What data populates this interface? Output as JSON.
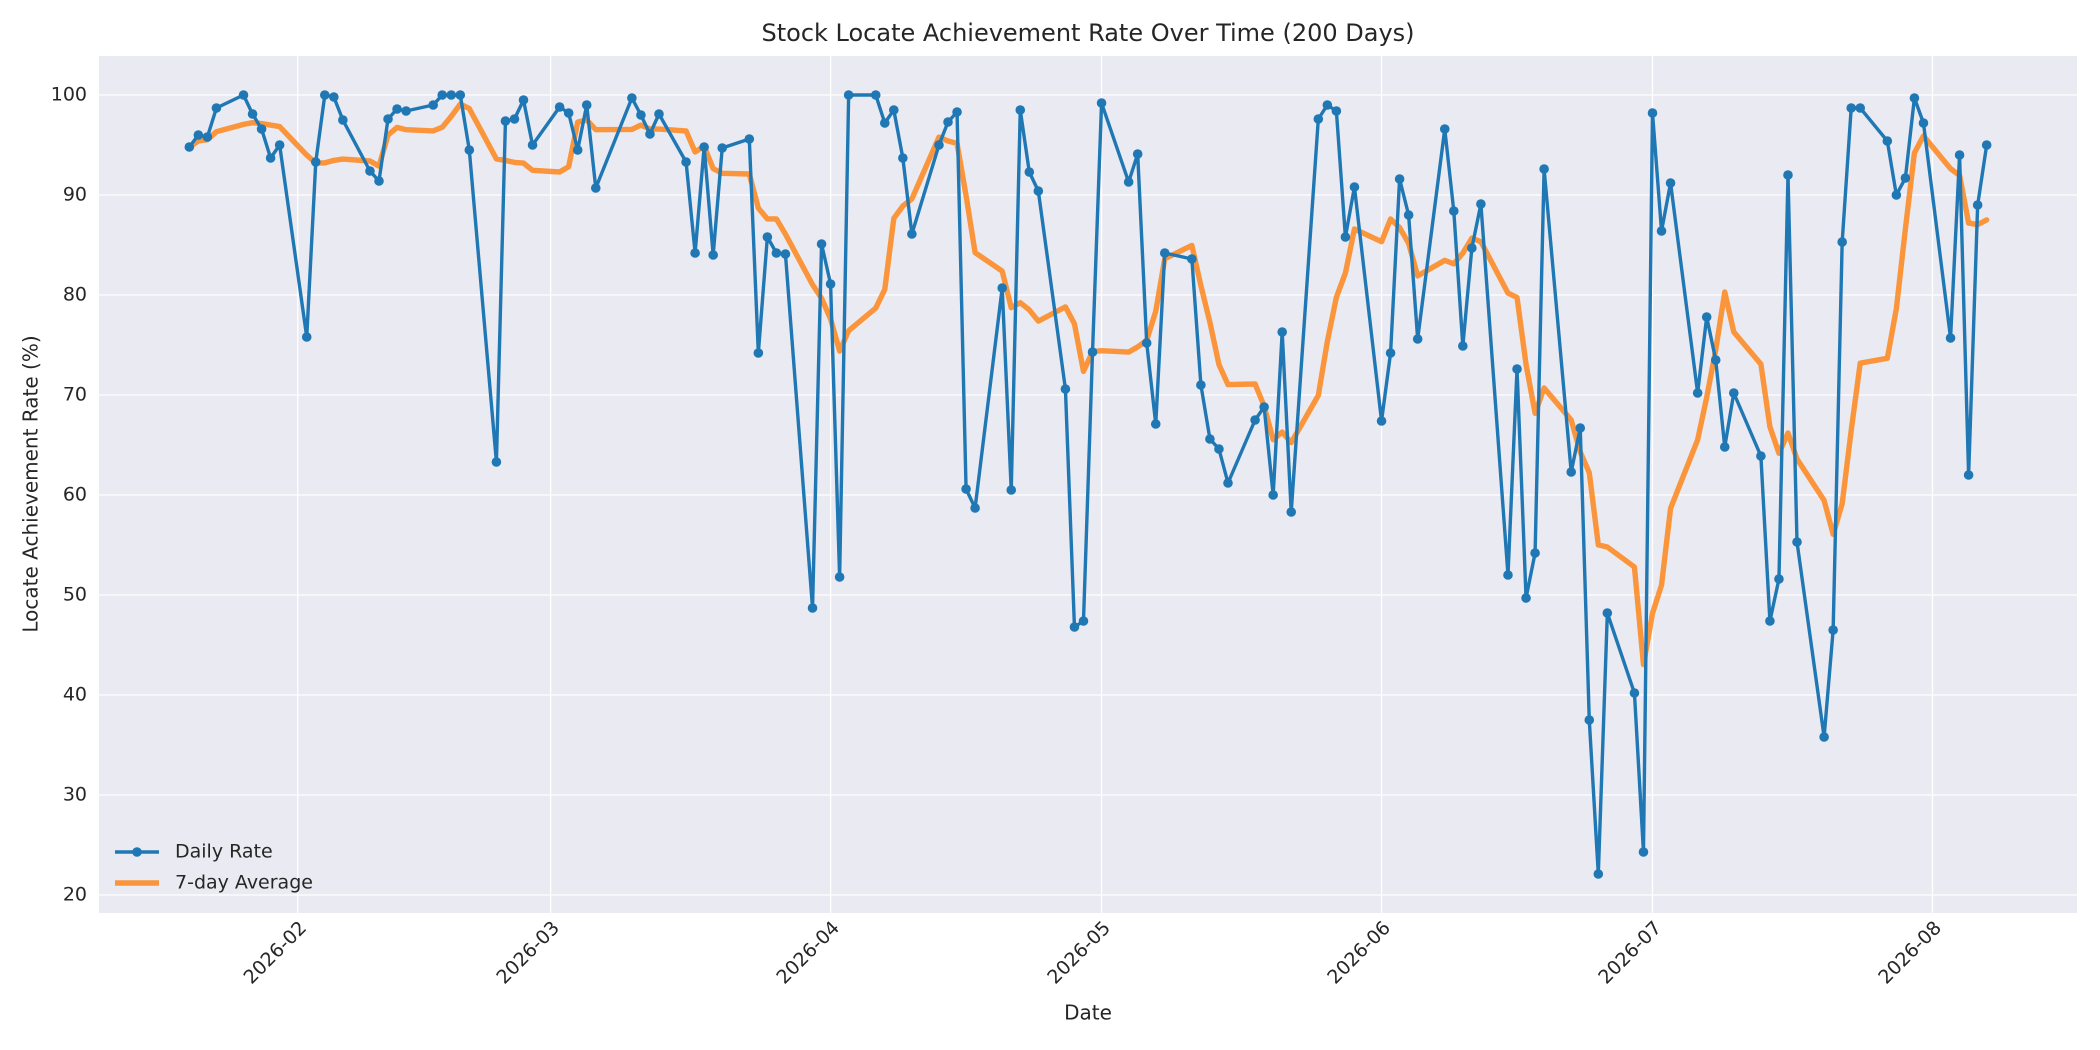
{
  "chart_data": {
    "type": "line",
    "title": "Stock Locate Achievement Rate Over Time (200 Days)",
    "xlabel": "Date",
    "ylabel": "Locate Achievement Rate (%)",
    "x": [
      "2026-01-20",
      "2026-01-21",
      "2026-01-22",
      "2026-01-23",
      "2026-01-26",
      "2026-01-27",
      "2026-01-28",
      "2026-01-29",
      "2026-01-30",
      "2026-02-02",
      "2026-02-03",
      "2026-02-04",
      "2026-02-05",
      "2026-02-06",
      "2026-02-09",
      "2026-02-10",
      "2026-02-11",
      "2026-02-12",
      "2026-02-13",
      "2026-02-16",
      "2026-02-17",
      "2026-02-18",
      "2026-02-19",
      "2026-02-20",
      "2026-02-23",
      "2026-02-24",
      "2026-02-25",
      "2026-02-26",
      "2026-02-27",
      "2026-03-02",
      "2026-03-03",
      "2026-03-04",
      "2026-03-05",
      "2026-03-06",
      "2026-03-10",
      "2026-03-11",
      "2026-03-12",
      "2026-03-13",
      "2026-03-16",
      "2026-03-17",
      "2026-03-18",
      "2026-03-19",
      "2026-03-20",
      "2026-03-23",
      "2026-03-24",
      "2026-03-25",
      "2026-03-26",
      "2026-03-27",
      "2026-03-30",
      "2026-03-31",
      "2026-04-01",
      "2026-04-02",
      "2026-04-03",
      "2026-04-06",
      "2026-04-07",
      "2026-04-08",
      "2026-04-09",
      "2026-04-10",
      "2026-04-13",
      "2026-04-14",
      "2026-04-15",
      "2026-04-16",
      "2026-04-17",
      "2026-04-20",
      "2026-04-21",
      "2026-04-22",
      "2026-04-23",
      "2026-04-24",
      "2026-04-27",
      "2026-04-28",
      "2026-04-29",
      "2026-04-30",
      "2026-05-01",
      "2026-05-04",
      "2026-05-05",
      "2026-05-06",
      "2026-05-07",
      "2026-05-08",
      "2026-05-11",
      "2026-05-12",
      "2026-05-13",
      "2026-05-14",
      "2026-05-15",
      "2026-05-18",
      "2026-05-19",
      "2026-05-20",
      "2026-05-21",
      "2026-05-22",
      "2026-05-25",
      "2026-05-26",
      "2026-05-27",
      "2026-05-28",
      "2026-05-29",
      "2026-06-01",
      "2026-06-02",
      "2026-06-03",
      "2026-06-04",
      "2026-06-05",
      "2026-06-08",
      "2026-06-09",
      "2026-06-10",
      "2026-06-11",
      "2026-06-12",
      "2026-06-15",
      "2026-06-16",
      "2026-06-17",
      "2026-06-18",
      "2026-06-19",
      "2026-06-22",
      "2026-06-23",
      "2026-06-24",
      "2026-06-25",
      "2026-06-26",
      "2026-06-29",
      "2026-06-30",
      "2026-07-01",
      "2026-07-02",
      "2026-07-03",
      "2026-07-06",
      "2026-07-07",
      "2026-07-08",
      "2026-07-09",
      "2026-07-10",
      "2026-07-13",
      "2026-07-14",
      "2026-07-15",
      "2026-07-16",
      "2026-07-17",
      "2026-07-20",
      "2026-07-21",
      "2026-07-22",
      "2026-07-23",
      "2026-07-24",
      "2026-07-27",
      "2026-07-28",
      "2026-07-29",
      "2026-07-30",
      "2026-07-31",
      "2026-08-03",
      "2026-08-04",
      "2026-08-05",
      "2026-08-06",
      "2026-08-07"
    ],
    "series": [
      {
        "name": "Daily Rate",
        "color": "#1f77b4",
        "marker": "o",
        "values": [
          94.8,
          96,
          95.8,
          98.7,
          100,
          98.1,
          96.6,
          93.7,
          95,
          75.8,
          93.3,
          100,
          99.8,
          97.5,
          92.4,
          91.4,
          97.6,
          98.6,
          98.4,
          99,
          100,
          100,
          100,
          94.5,
          63.3,
          97.4,
          97.6,
          99.5,
          95,
          98.8,
          98.2,
          94.5,
          99,
          90.7,
          99.7,
          98,
          96.1,
          98.1,
          93.3,
          84.2,
          94.8,
          84,
          94.7,
          95.6,
          74.2,
          85.8,
          84.2,
          84.1,
          48.7,
          85.1,
          81.1,
          51.8,
          100,
          100,
          97.2,
          98.5,
          93.7,
          86.1,
          95,
          97.3,
          98.3,
          60.6,
          58.7,
          80.7,
          60.5,
          98.5,
          92.3,
          90.4,
          70.6,
          46.8,
          47.4,
          74.3,
          99.2,
          91.3,
          94.1,
          75.2,
          67.1,
          84.2,
          83.6,
          71,
          65.6,
          64.6,
          61.2,
          67.5,
          68.8,
          60,
          76.3,
          58.3,
          97.6,
          99,
          98.4,
          85.8,
          90.8,
          67.4,
          74.2,
          91.6,
          88,
          75.6,
          96.6,
          88.4,
          74.9,
          84.7,
          89.1,
          52,
          72.6,
          49.7,
          54.2,
          92.6,
          62.3,
          66.7,
          37.5,
          22.1,
          48.2,
          40.2,
          24.3,
          98.2,
          86.4,
          91.2,
          70.2,
          77.8,
          73.5,
          64.8,
          70.2,
          63.9,
          47.4,
          51.6,
          92,
          55.3,
          35.8,
          46.5,
          85.3,
          98.7,
          98.7,
          95.4,
          90,
          91.7,
          99.7,
          97.2,
          75.7,
          94,
          62,
          89,
          95
        ]
      },
      {
        "name": "7-day Average",
        "color": "#ff7f0e",
        "alpha": 0.8,
        "values": [
          94.8,
          95.4,
          95.53,
          96.33,
          97.06,
          97.23,
          97.14,
          96.99,
          96.84,
          93.99,
          93.21,
          93.21,
          93.46,
          93.59,
          93.4,
          92.89,
          96,
          96.76,
          96.53,
          96.41,
          96.77,
          97.86,
          99.09,
          98.64,
          93.6,
          93.46,
          93.26,
          93.19,
          92.47,
          92.3,
          92.83,
          97.29,
          97.51,
          96.53,
          96.56,
          96.99,
          96.6,
          96.59,
          96.41,
          94.3,
          94.89,
          92.64,
          92.17,
          92.1,
          88.69,
          87.61,
          87.61,
          86.09,
          81.04,
          79.67,
          77.6,
          74.4,
          76.43,
          78.69,
          80.56,
          87.67,
          88.9,
          89.61,
          95.79,
          95.4,
          95.16,
          89.93,
          84.24,
          82.39,
          78.73,
          79.23,
          78.51,
          77.39,
          78.81,
          77.11,
          72.36,
          74.33,
          74.43,
          74.29,
          74.81,
          75.47,
          78.37,
          83.63,
          84.96,
          80.93,
          77.26,
          73.04,
          71.04,
          71.1,
          68.9,
          65.53,
          66.29,
          65.24,
          69.96,
          75.36,
          79.77,
          82.2,
          86.6,
          85.33,
          87.6,
          86.74,
          85.17,
          81.91,
          83.46,
          83.11,
          84.19,
          85.69,
          85.33,
          80.19,
          79.76,
          73.06,
          68.17,
          70.7,
          67.5,
          64.3,
          62.23,
          55.01,
          54.8,
          52.8,
          43.04,
          48.17,
          50.99,
          58.66,
          65.53,
          69.76,
          74.51,
          80.3,
          76.3,
          73.09,
          66.83,
          64.17,
          66.2,
          63.6,
          59.46,
          56.07,
          59.13,
          66.46,
          73.19,
          73.67,
          78.63,
          86.61,
          94.21,
          95.91,
          92.63,
          91.96,
          87.19,
          87.04,
          87.51
        ]
      }
    ],
    "xlim": [
      "2026-01-10",
      "2026-08-17"
    ],
    "xticks": [
      {
        "value": "2026-02-01",
        "label": "2026-02"
      },
      {
        "value": "2026-03-01",
        "label": "2026-03"
      },
      {
        "value": "2026-04-01",
        "label": "2026-04"
      },
      {
        "value": "2026-05-01",
        "label": "2026-05"
      },
      {
        "value": "2026-06-01",
        "label": "2026-06"
      },
      {
        "value": "2026-07-01",
        "label": "2026-07"
      },
      {
        "value": "2026-08-01",
        "label": "2026-08"
      }
    ],
    "ylim": [
      18.2,
      103.9
    ],
    "yticks": [
      20,
      30,
      40,
      50,
      60,
      70,
      80,
      90,
      100
    ],
    "grid": true,
    "legend": "lower left"
  }
}
